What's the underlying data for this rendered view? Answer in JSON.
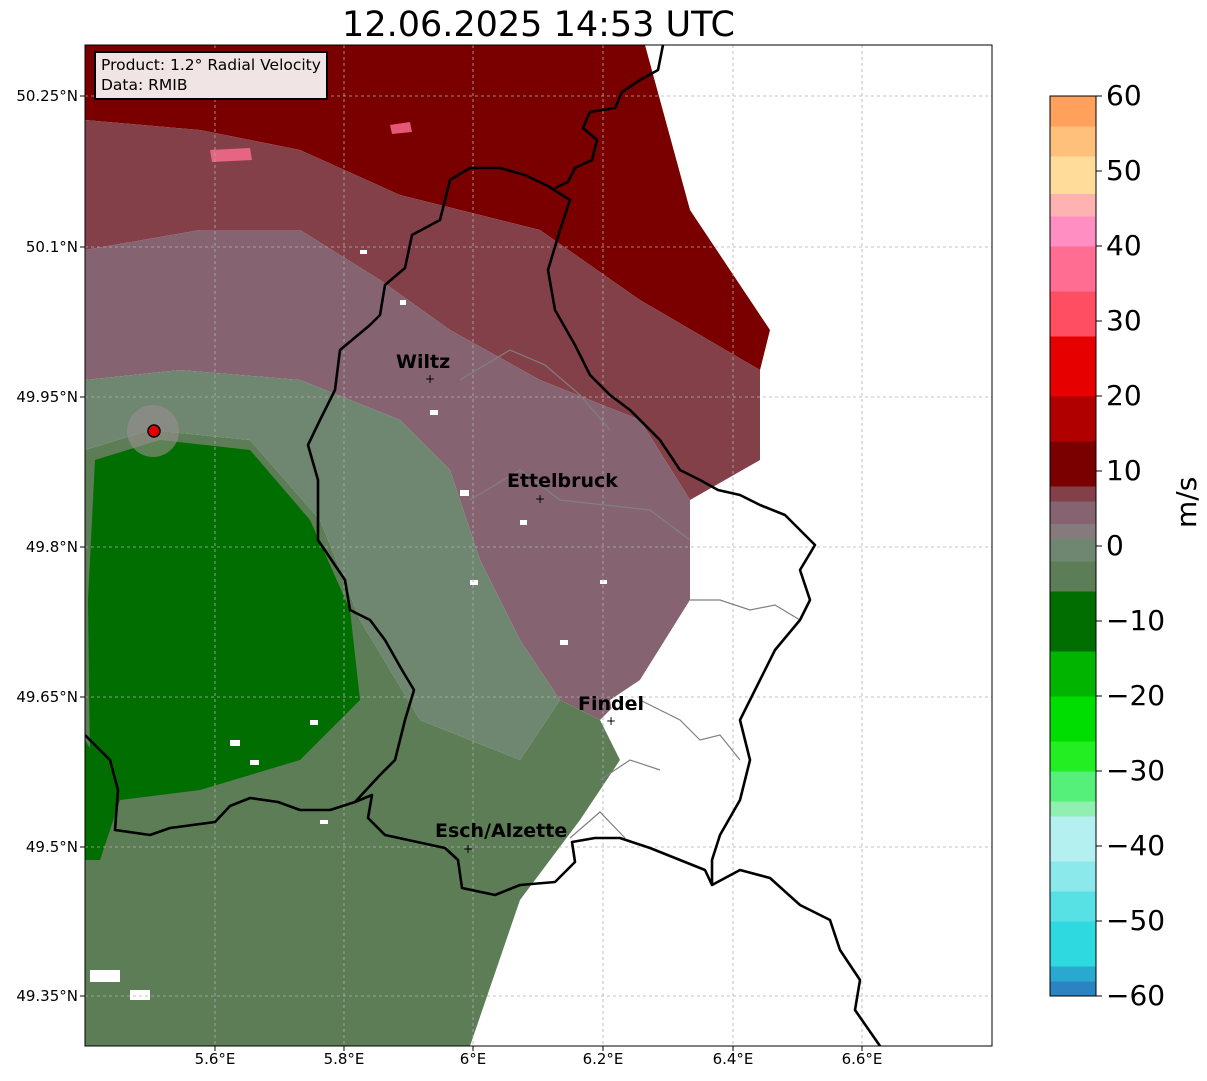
{
  "title": "12.06.2025 14:53 UTC",
  "info_box": {
    "product": "Product: 1.2° Radial Velocity",
    "data": "Data: RMIB"
  },
  "lat_ticks": [
    "50.25°N",
    "50.1°N",
    "49.95°N",
    "49.8°N",
    "49.65°N",
    "49.5°N",
    "49.35°N"
  ],
  "lon_ticks": [
    "5.6°E",
    "5.8°E",
    "6°E",
    "6.2°E",
    "6.4°E",
    "6.6°E"
  ],
  "map_extent": {
    "lon": [
      5.4,
      6.8
    ],
    "lat": [
      49.3,
      50.3
    ]
  },
  "radar_site": {
    "lon": 5.505,
    "lat": 49.915,
    "color": "#e10000"
  },
  "cities": [
    {
      "name": "Wiltz",
      "lon": 5.933,
      "lat": 49.966
    },
    {
      "name": "Ettelbruck",
      "lon": 6.104,
      "lat": 49.847
    },
    {
      "name": "Findel",
      "lon": 6.206,
      "lat": 49.627
    },
    {
      "name": "Esch/Alzette",
      "lon": 5.983,
      "lat": 49.496
    }
  ],
  "colorbar": {
    "label": "m/s",
    "min": -60,
    "max": 60,
    "tick_labels": [
      "60",
      "50",
      "40",
      "30",
      "20",
      "10",
      "0",
      "−10",
      "−20",
      "−30",
      "−40",
      "−50",
      "−60"
    ],
    "bands": [
      {
        "from": -60,
        "to": -58,
        "color": "#2b83c2"
      },
      {
        "from": -58,
        "to": -56,
        "color": "#29a9d0"
      },
      {
        "from": -56,
        "to": -50,
        "color": "#2ed9df"
      },
      {
        "from": -50,
        "to": -46,
        "color": "#58e1e4"
      },
      {
        "from": -46,
        "to": -42,
        "color": "#8be9eb"
      },
      {
        "from": -42,
        "to": -36,
        "color": "#b5f0f0"
      },
      {
        "from": -36,
        "to": -34,
        "color": "#90f0b0"
      },
      {
        "from": -34,
        "to": -30,
        "color": "#55f07a"
      },
      {
        "from": -30,
        "to": -26,
        "color": "#22ee22"
      },
      {
        "from": -26,
        "to": -20,
        "color": "#00dd00"
      },
      {
        "from": -20,
        "to": -14,
        "color": "#00b400"
      },
      {
        "from": -14,
        "to": -6,
        "color": "#006e00"
      },
      {
        "from": -6,
        "to": -2,
        "color": "#5c7d56"
      },
      {
        "from": -2,
        "to": 1,
        "color": "#6f8670"
      },
      {
        "from": 1,
        "to": 3,
        "color": "#867b7c"
      },
      {
        "from": 3,
        "to": 6,
        "color": "#866370"
      },
      {
        "from": 6,
        "to": 8,
        "color": "#834048"
      },
      {
        "from": 8,
        "to": 14,
        "color": "#7a0000"
      },
      {
        "from": 14,
        "to": 20,
        "color": "#b00000"
      },
      {
        "from": 20,
        "to": 28,
        "color": "#e60000"
      },
      {
        "from": 28,
        "to": 34,
        "color": "#ff4d62"
      },
      {
        "from": 34,
        "to": 40,
        "color": "#ff6e92"
      },
      {
        "from": 40,
        "to": 44,
        "color": "#ff8fc3"
      },
      {
        "from": 44,
        "to": 47,
        "color": "#ffb2b2"
      },
      {
        "from": 47,
        "to": 52,
        "color": "#ffdc99"
      },
      {
        "from": 52,
        "to": 56,
        "color": "#ffc07c"
      },
      {
        "from": 56,
        "to": 60,
        "color": "#ffa05c"
      }
    ]
  }
}
